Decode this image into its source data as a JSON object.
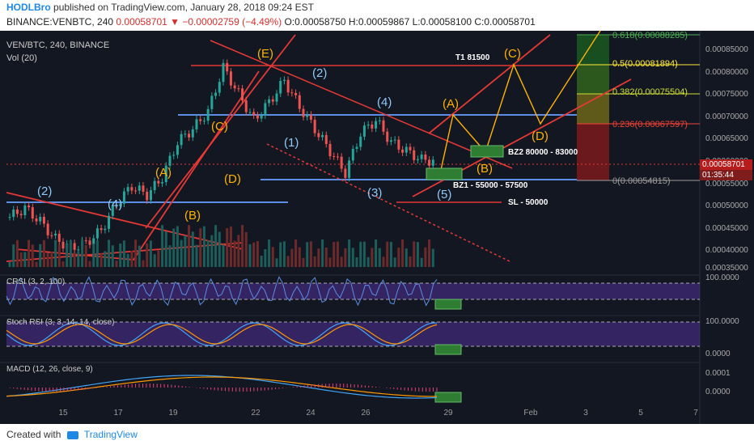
{
  "header": {
    "brand": "HODLBro",
    "publish_text": "published on TradingView.com, January 28, 2018 09:24 EST",
    "symbol": "BINANCE:VENBTC, 240",
    "last": "0.00058701",
    "change": "▼ −0.00002759 (−4.49%)",
    "ohlc": "O:0.00058750 H:0.00059867 L:0.00058100 C:0.00058701"
  },
  "chart_title": "VEN/BTC, 240, BINANCE",
  "vol_label": "Vol (20)",
  "price_tag": "0.00058701",
  "countdown": "01:35:44",
  "footer": {
    "created": "Created with",
    "brand": "TradingView"
  },
  "fib_levels": [
    {
      "label": "0.618(0.00088285)",
      "color": "#4caf50"
    },
    {
      "label": "0.5(0.00081894)",
      "color": "#ffeb3b"
    },
    {
      "label": "0.382(0.00075504)",
      "color": "#cddc39"
    },
    {
      "label": "0.236(0.00067597)",
      "color": "#f44336"
    },
    {
      "label": "0(0.00054815)",
      "color": "#9e9e9e"
    }
  ],
  "annotations": {
    "t1": "T1 81500",
    "bz2": "BZ2 80000 - 83000",
    "bz1": "BZ1 - 55000 - 57500",
    "sl": "SL - 50000"
  },
  "indicators": {
    "crsi": "CRSI (3, 2, 100)",
    "crsi_100": "100.0000",
    "stoch": "Stoch RSI (3, 3, 14, 14, close)",
    "stoch_100": "100.0000",
    "stoch_0": "0.0000",
    "macd": "MACD (12, 26, close, 9)",
    "macd_hi": "0.0001",
    "macd_0": "0.0000"
  },
  "chart_data": {
    "type": "line",
    "y_ticks": [
      "0.00085000",
      "0.00080000",
      "0.00075000",
      "0.00070000",
      "0.00065000",
      "0.00060000",
      "0.00055000",
      "0.00050000",
      "0.00045000",
      "0.00040000",
      "0.00035000"
    ],
    "x_ticks": [
      "15",
      "17",
      "19",
      "22",
      "24",
      "26",
      "29",
      "Feb",
      "3",
      "5",
      "7"
    ],
    "close_approx": [
      0.00046,
      0.00048,
      0.00045,
      0.00041,
      0.00039,
      0.0004,
      0.00043,
      0.00049,
      0.00053,
      0.00051,
      0.00055,
      0.00063,
      0.00066,
      0.0007,
      0.0008,
      0.00074,
      0.00068,
      0.00072,
      0.00077,
      0.00071,
      0.00066,
      0.00061,
      0.00056,
      0.00065,
      0.00068,
      0.00063,
      0.00061,
      0.00059,
      0.00058701
    ],
    "wave_labels_blue": [
      "(2)",
      "(4)",
      "(2)",
      "(1)",
      "(4)",
      "(3)",
      "(5)"
    ],
    "wave_labels_orange": [
      "(A)",
      "(B)",
      "(C)",
      "(D)",
      "(E)",
      "(A)",
      "(B)",
      "(C)",
      "(D)"
    ]
  }
}
